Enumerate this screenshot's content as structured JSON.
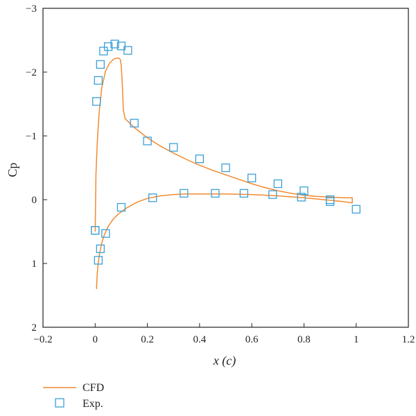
{
  "chart_data": {
    "type": "line",
    "xlabel": "x (c)",
    "ylabel": "Cp",
    "xlim": [
      -0.2,
      1.2
    ],
    "ylim": [
      2,
      -3
    ],
    "y_axis_inverted": true,
    "grid": false,
    "legend_position": "bottom-left, below plot",
    "x_ticks": [
      "−0.2",
      "0",
      "0.2",
      "0.4",
      "0.6",
      "0.8",
      "1",
      "1.2"
    ],
    "y_ticks": [
      "−3",
      "−2",
      "−1",
      "0",
      "1",
      "2"
    ],
    "x_tick_values": [
      -0.2,
      0,
      0.2,
      0.4,
      0.6,
      0.8,
      1,
      1.2
    ],
    "y_tick_values": [
      -3,
      -2,
      -1,
      0,
      1,
      2
    ],
    "colors": {
      "cfd": "#f28a30",
      "exp": "#3aa0d8",
      "axis": "#231f20"
    },
    "series": [
      {
        "name": "CFD",
        "kind": "line",
        "x": [
          0.0,
          0.003,
          0.008,
          0.015,
          0.025,
          0.04,
          0.055,
          0.07,
          0.082,
          0.09,
          0.096,
          0.1,
          0.104,
          0.108,
          0.115,
          0.13,
          0.15,
          0.2,
          0.25,
          0.3,
          0.35,
          0.4,
          0.45,
          0.5,
          0.55,
          0.6,
          0.65,
          0.7,
          0.75,
          0.8,
          0.85,
          0.9,
          0.95,
          0.985,
          0.985,
          0.95,
          0.9,
          0.8,
          0.7,
          0.6,
          0.5,
          0.4,
          0.35,
          0.3,
          0.25,
          0.2,
          0.16,
          0.12,
          0.09,
          0.07,
          0.05,
          0.035,
          0.025,
          0.018,
          0.012,
          0.008,
          0.005
        ],
        "y": [
          0.5,
          -0.4,
          -0.9,
          -1.35,
          -1.75,
          -2.02,
          -2.14,
          -2.2,
          -2.22,
          -2.22,
          -2.2,
          -2.1,
          -1.8,
          -1.4,
          -1.27,
          -1.21,
          -1.13,
          -0.97,
          -0.84,
          -0.73,
          -0.63,
          -0.54,
          -0.46,
          -0.39,
          -0.32,
          -0.25,
          -0.19,
          -0.14,
          -0.1,
          -0.07,
          -0.05,
          -0.04,
          -0.03,
          -0.03,
          0.05,
          0.03,
          0.01,
          -0.03,
          -0.06,
          -0.08,
          -0.09,
          -0.09,
          -0.09,
          -0.08,
          -0.06,
          -0.02,
          0.04,
          0.13,
          0.22,
          0.3,
          0.42,
          0.55,
          0.68,
          0.82,
          0.98,
          1.15,
          1.4
        ]
      },
      {
        "name": "Exp.",
        "kind": "scatter",
        "x": [
          0.0,
          0.005,
          0.012,
          0.02,
          0.032,
          0.05,
          0.075,
          0.1,
          0.125,
          0.15,
          0.2,
          0.3,
          0.4,
          0.5,
          0.6,
          0.7,
          0.8,
          0.9,
          1.0,
          0.9,
          0.79,
          0.68,
          0.57,
          0.46,
          0.34,
          0.22,
          0.1,
          0.04,
          0.02,
          0.012,
          0.0
        ],
        "y": [
          0.48,
          -1.54,
          -1.87,
          -2.12,
          -2.33,
          -2.4,
          -2.44,
          -2.41,
          -2.34,
          -1.2,
          -0.92,
          -0.82,
          -0.64,
          -0.5,
          -0.34,
          -0.25,
          -0.14,
          0.0,
          0.15,
          0.03,
          -0.04,
          -0.08,
          -0.1,
          -0.1,
          -0.1,
          -0.03,
          0.12,
          0.53,
          0.77,
          0.95,
          0.48
        ]
      }
    ],
    "legend": [
      {
        "label": "CFD",
        "marker": "line"
      },
      {
        "label": "Exp.",
        "marker": "square"
      }
    ]
  }
}
